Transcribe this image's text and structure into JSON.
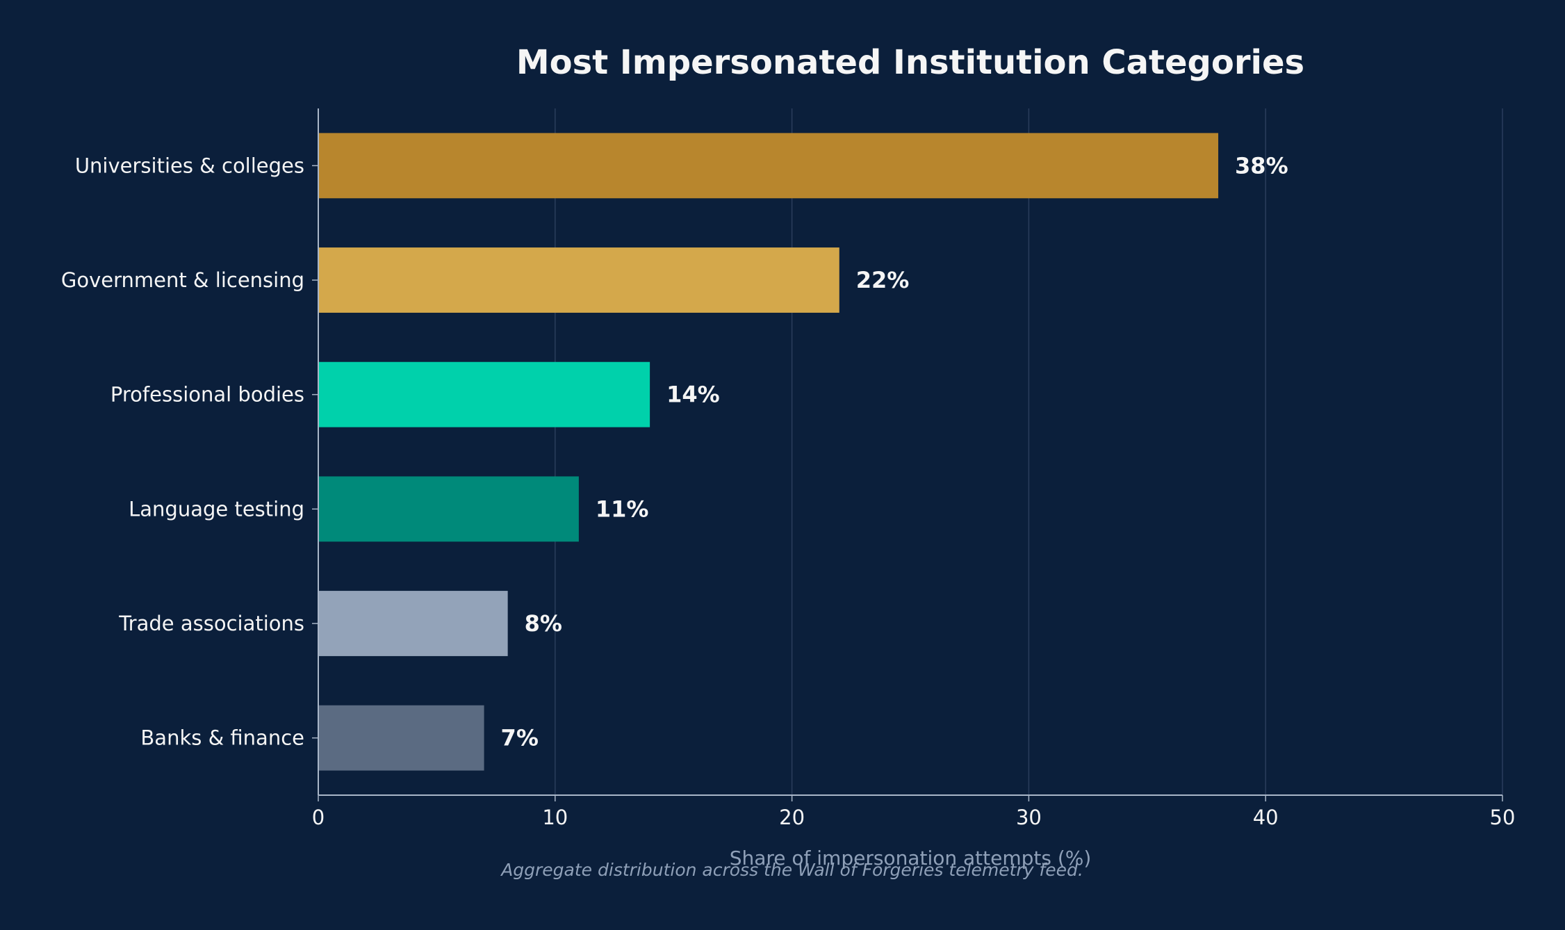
{
  "colors": {
    "background": "#0b1f3b",
    "text": "#f5f5f5",
    "muted": "#8fa0b8",
    "axis": "#a9b6c8",
    "grid": "#2a3d5c"
  },
  "chart_data": {
    "type": "bar",
    "orientation": "horizontal",
    "title": "Most Impersonated Institution Categories",
    "xlabel": "Share of impersonation attempts (%)",
    "ylabel": "",
    "caption": "Aggregate distribution across the Wall of Forgeries telemetry feed.",
    "categories": [
      "Universities & colleges",
      "Government & licensing",
      "Professional bodies",
      "Language testing",
      "Trade associations",
      "Banks & finance"
    ],
    "values": [
      38,
      22,
      14,
      11,
      8,
      7
    ],
    "value_labels": [
      "38%",
      "22%",
      "14%",
      "11%",
      "8%",
      "7%"
    ],
    "bar_colors": [
      "#b8862d",
      "#d4a84b",
      "#00d1ab",
      "#008a7a",
      "#93a3b9",
      "#5b6b82"
    ],
    "xlim": [
      0,
      50
    ],
    "xticks": [
      0,
      10,
      20,
      30,
      40,
      50
    ],
    "grid": "vertical",
    "legend": "none"
  }
}
